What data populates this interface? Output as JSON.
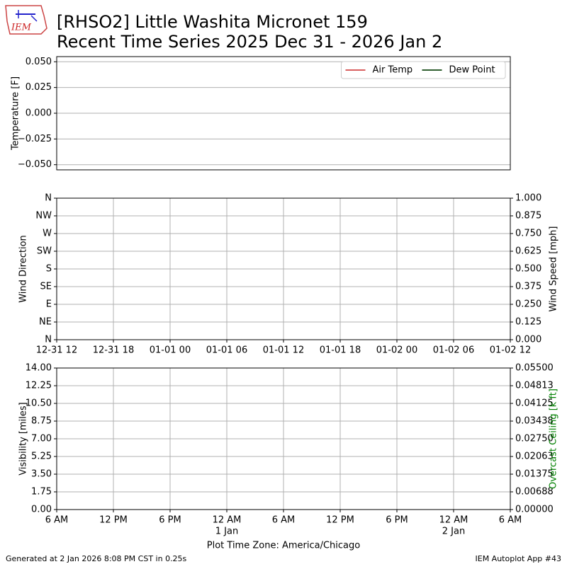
{
  "logo_text": "IEM",
  "title": "[RHSO2] Little Washita Micronet 159",
  "subtitle": "Recent Time Series 2025 Dec 31 - 2026 Jan 2",
  "footer_left": "Generated at 2 Jan 2026 8:08 PM CST in 0.25s",
  "footer_right": "IEM Autoplot App #43",
  "chart_data": [
    {
      "type": "line",
      "ylabel": "Temperature [F]",
      "ylim": [
        -0.055,
        0.055
      ],
      "yticks": [
        {
          "value": 0.05,
          "label": "0.050"
        },
        {
          "value": 0.025,
          "label": "0.025"
        },
        {
          "value": 0,
          "label": "0.000"
        },
        {
          "value": -0.025,
          "label": "−0.025"
        },
        {
          "value": -0.05,
          "label": "−0.050"
        }
      ],
      "grid": "y",
      "legend": "upper right",
      "series": [
        {
          "name": "Air Temp",
          "color": "#d95f5f"
        },
        {
          "name": "Dew Point",
          "color": "#2f5f2f"
        }
      ]
    },
    {
      "type": "line",
      "ylabel": "Wind Direction",
      "y2label": "Wind Speed [mph]",
      "ylim": [
        0,
        360
      ],
      "yticks": [
        {
          "value": 360,
          "label": "N"
        },
        {
          "value": 315,
          "label": "NW"
        },
        {
          "value": 270,
          "label": "W"
        },
        {
          "value": 225,
          "label": "SW"
        },
        {
          "value": 180,
          "label": "S"
        },
        {
          "value": 135,
          "label": "SE"
        },
        {
          "value": 90,
          "label": "E"
        },
        {
          "value": 45,
          "label": "NE"
        },
        {
          "value": 0,
          "label": "N"
        }
      ],
      "y2lim": [
        0,
        1
      ],
      "y2ticks": [
        {
          "value": 1,
          "label": "1.000"
        },
        {
          "value": 0.875,
          "label": "0.875"
        },
        {
          "value": 0.75,
          "label": "0.750"
        },
        {
          "value": 0.625,
          "label": "0.625"
        },
        {
          "value": 0.5,
          "label": "0.500"
        },
        {
          "value": 0.375,
          "label": "0.375"
        },
        {
          "value": 0.25,
          "label": "0.250"
        },
        {
          "value": 0.125,
          "label": "0.125"
        },
        {
          "value": 0,
          "label": "0.000"
        }
      ],
      "xticks": [
        "12-31 12",
        "12-31 18",
        "01-01 00",
        "01-01 06",
        "01-01 12",
        "01-01 18",
        "01-02 00",
        "01-02 06",
        "01-02 12"
      ],
      "grid": "both"
    },
    {
      "type": "line",
      "ylabel": "Visibility [miles]",
      "y2label": "Overcast Ceiling [k ft]",
      "y2label_color": "green",
      "xlabel": "Plot Time Zone: America/Chicago",
      "ylim": [
        0,
        14
      ],
      "yticks": [
        {
          "value": 14,
          "label": "14.00"
        },
        12.25,
        {
          "value": 10.5,
          "label": "10.50"
        },
        8.75,
        {
          "value": 7,
          "label": "7.00"
        },
        5.25,
        {
          "value": 3.5,
          "label": "3.50"
        },
        1.75,
        {
          "value": 0,
          "label": "0.00"
        }
      ],
      "y2lim": [
        0,
        0.055
      ],
      "y2ticks": [
        {
          "value": 0.055,
          "label": "0.05500"
        },
        {
          "value": 0.048125,
          "label": "0.04813"
        },
        {
          "value": 0.04125,
          "label": "0.04125"
        },
        {
          "value": 0.034375,
          "label": "0.03438"
        },
        {
          "value": 0.0275,
          "label": "0.02750"
        },
        {
          "value": 0.020625,
          "label": "0.02063"
        },
        {
          "value": 0.01375,
          "label": "0.01375"
        },
        {
          "value": 0.006875,
          "label": "0.00688"
        },
        {
          "value": 0,
          "label": "0.00000"
        }
      ],
      "xticks": [
        "6 AM",
        "12 PM",
        "6 PM",
        "12 AM",
        "6 AM",
        "12 PM",
        "6 PM",
        "12 AM",
        "6 AM"
      ],
      "xtick_sublabels": [
        null,
        null,
        null,
        "1 Jan",
        null,
        null,
        null,
        "2 Jan",
        null
      ],
      "grid": "both"
    }
  ]
}
